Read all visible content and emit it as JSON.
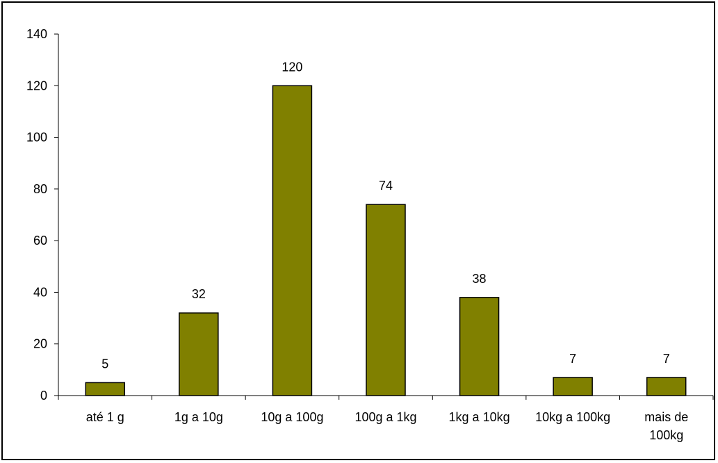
{
  "chart_data": {
    "type": "bar",
    "title": "",
    "xlabel": "",
    "ylabel": "",
    "categories": [
      "até 1 g",
      "1g a 10g",
      "10g a 100g",
      "100g a 1kg",
      "1kg a 10kg",
      "10kg a 100kg",
      "mais de 100kg"
    ],
    "category_lines": [
      [
        "até 1 g"
      ],
      [
        "1g a 10g"
      ],
      [
        "10g a 100g"
      ],
      [
        "100g a 1kg"
      ],
      [
        "1kg a 10kg"
      ],
      [
        "10kg a 100kg"
      ],
      [
        "mais de",
        "100kg"
      ]
    ],
    "values": [
      5,
      32,
      120,
      74,
      38,
      7,
      7
    ],
    "data_labels": [
      "5",
      "32",
      "120",
      "74",
      "38",
      "7",
      "7"
    ],
    "ylim": [
      0,
      140
    ],
    "yticks": [
      "0",
      "20",
      "40",
      "60",
      "80",
      "100",
      "120",
      "140"
    ],
    "grid": false,
    "legend": "none",
    "bar_color": "#808000",
    "bar_edge_color": "#000000"
  }
}
